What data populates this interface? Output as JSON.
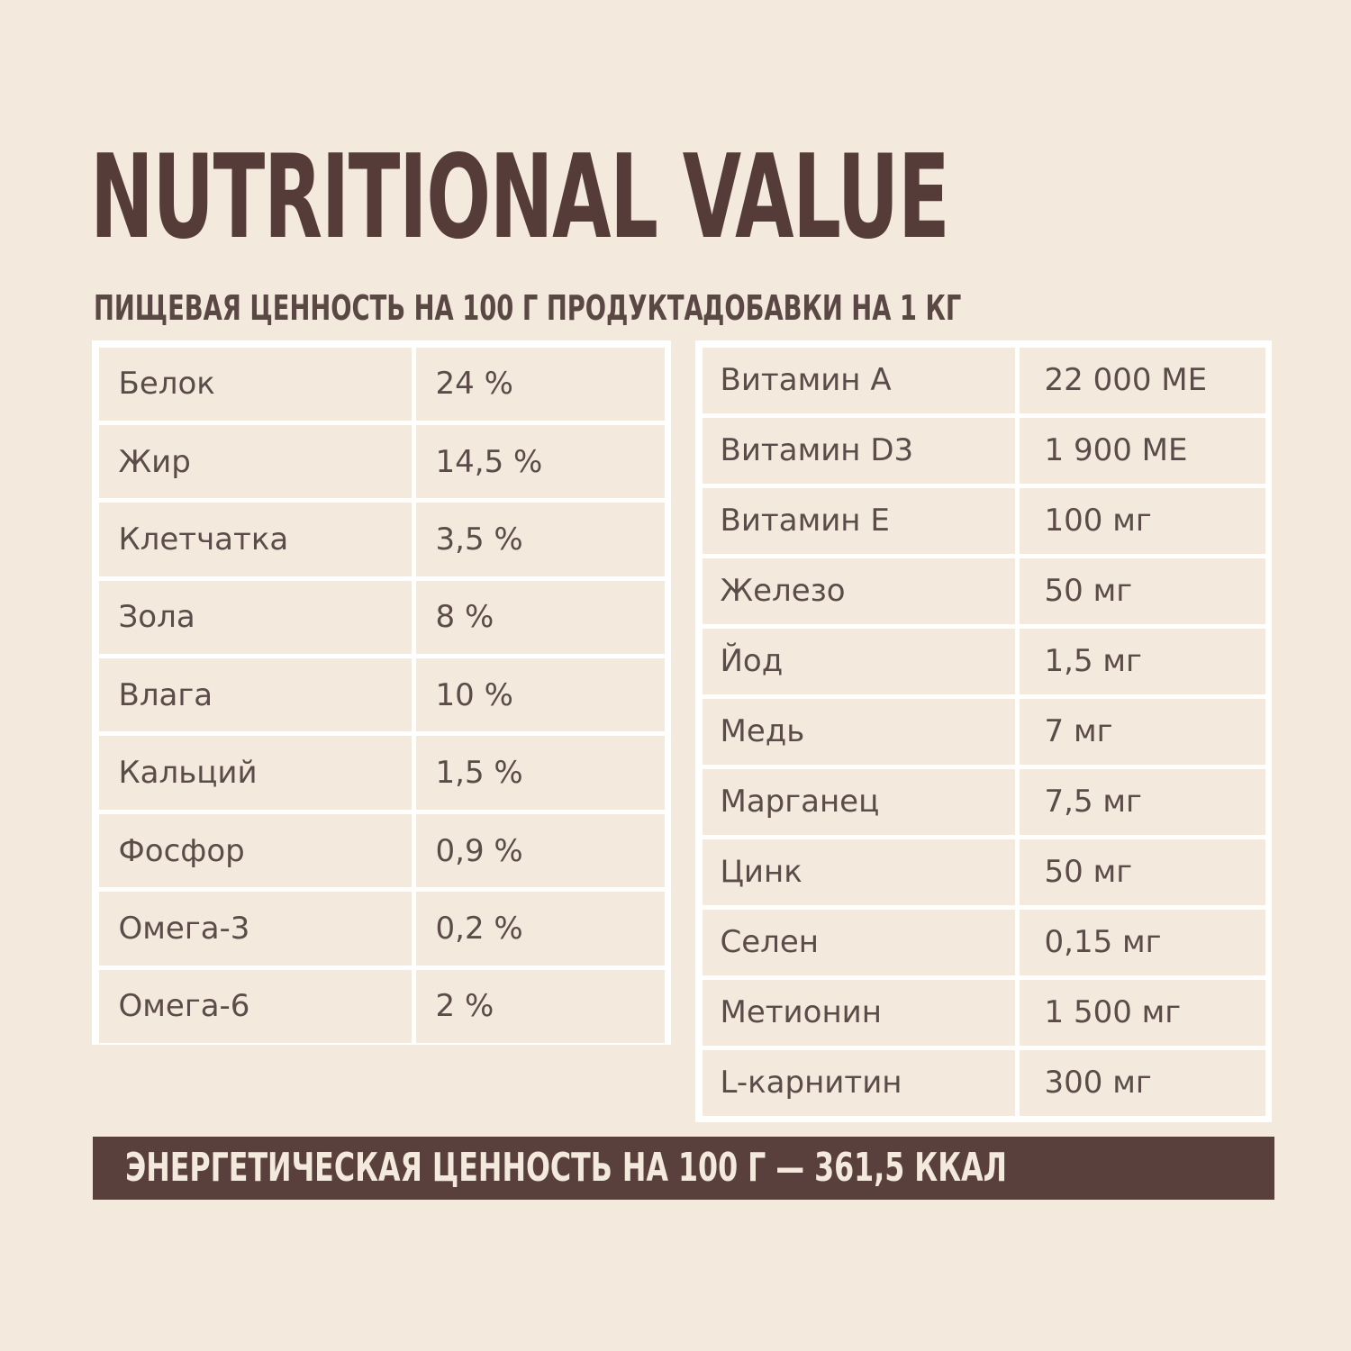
{
  "title": "NUTRITIONAL VALUE",
  "left_section": {
    "heading": "ПИЩЕВАЯ ЦЕННОСТЬ НА 100 Г ПРОДУКТА",
    "rows": [
      {
        "name": "Белок",
        "value": "24 %"
      },
      {
        "name": "Жир",
        "value": "14,5 %"
      },
      {
        "name": "Клетчатка",
        "value": "3,5 %"
      },
      {
        "name": "Зола",
        "value": "8 %"
      },
      {
        "name": "Влага",
        "value": "10 %"
      },
      {
        "name": "Кальций",
        "value": "1,5 %"
      },
      {
        "name": "Фосфор",
        "value": "0,9 %"
      },
      {
        "name": "Омега-3",
        "value": "0,2 %"
      },
      {
        "name": "Омега-6",
        "value": "2 %"
      }
    ]
  },
  "right_section": {
    "heading": "ДОБАВКИ НА 1 КГ",
    "rows": [
      {
        "name": "Витамин A",
        "value": "22 000 МЕ"
      },
      {
        "name": "Витамин D3",
        "value": "1 900 МЕ"
      },
      {
        "name": "Витамин E",
        "value": "100 мг"
      },
      {
        "name": "Железо",
        "value": "50 мг"
      },
      {
        "name": "Йод",
        "value": "1,5 мг"
      },
      {
        "name": "Медь",
        "value": "7 мг"
      },
      {
        "name": "Марганец",
        "value": "7,5 мг"
      },
      {
        "name": "Цинк",
        "value": "50 мг"
      },
      {
        "name": "Селен",
        "value": "0,15 мг"
      },
      {
        "name": "Метионин",
        "value": "1 500 мг"
      },
      {
        "name": "L-карнитин",
        "value": "300 мг"
      }
    ]
  },
  "energy_banner": "ЭНЕРГЕТИЧЕСКАЯ ЦЕННОСТЬ НА 100 Г — 361,5 ККАЛ",
  "colors": {
    "background": "#f3e9dc",
    "title": "#553c38",
    "banner": "#5a403d",
    "table_lines": "#ffffff"
  }
}
